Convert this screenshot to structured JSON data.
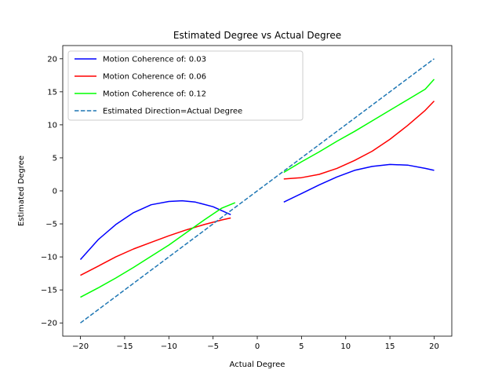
{
  "chart_data": {
    "type": "line",
    "title": "Estimated Degree vs Actual Degree",
    "xlabel": "Actual Degree",
    "ylabel": "Estimated Degree",
    "xlim": [
      -22,
      22
    ],
    "ylim": [
      -22,
      22
    ],
    "xticks": [
      -20,
      -15,
      -10,
      -5,
      0,
      5,
      10,
      15,
      20
    ],
    "yticks": [
      -20,
      -15,
      -10,
      -5,
      0,
      5,
      10,
      15,
      20
    ],
    "grid": false,
    "legend_position": "top-left",
    "series": [
      {
        "name": "Motion Coherence of: 0.03",
        "color": "#0000ff",
        "dashed": false,
        "segments": [
          {
            "x": [
              -20,
              -18,
              -16,
              -14,
              -12,
              -10,
              -8.5,
              -7,
              -5,
              -3
            ],
            "y": [
              -10.4,
              -7.4,
              -5.1,
              -3.3,
              -2.1,
              -1.6,
              -1.5,
              -1.7,
              -2.4,
              -3.6
            ]
          },
          {
            "x": [
              3,
              5,
              7,
              9,
              11,
              13,
              15,
              17,
              19,
              20
            ],
            "y": [
              -1.7,
              -0.4,
              0.9,
              2.1,
              3.1,
              3.7,
              4.0,
              3.9,
              3.4,
              3.1
            ]
          }
        ]
      },
      {
        "name": "Motion Coherence of: 0.06",
        "color": "#ff0000",
        "dashed": false,
        "segments": [
          {
            "x": [
              -20,
              -18,
              -16,
              -14,
              -12,
              -10,
              -8,
              -6,
              -4,
              -3
            ],
            "y": [
              -12.8,
              -11.4,
              -10.0,
              -8.8,
              -7.8,
              -6.8,
              -5.9,
              -5.1,
              -4.4,
              -4.1
            ]
          },
          {
            "x": [
              3,
              5,
              7,
              9,
              11,
              13,
              15,
              17,
              19,
              20
            ],
            "y": [
              1.8,
              2.0,
              2.5,
              3.4,
              4.6,
              6.0,
              7.8,
              9.9,
              12.2,
              13.6
            ]
          }
        ]
      },
      {
        "name": "Motion Coherence of: 0.12",
        "color": "#00ff00",
        "dashed": false,
        "segments": [
          {
            "x": [
              -20,
              -18,
              -16,
              -14,
              -12,
              -10,
              -8,
              -6,
              -4,
              -2.5
            ],
            "y": [
              -16.1,
              -14.7,
              -13.2,
              -11.6,
              -9.9,
              -8.2,
              -6.3,
              -4.4,
              -2.6,
              -1.8
            ]
          },
          {
            "x": [
              3,
              5,
              7,
              9,
              11,
              13,
              15,
              17,
              19,
              20
            ],
            "y": [
              2.8,
              4.4,
              5.9,
              7.5,
              9.0,
              10.6,
              12.2,
              13.8,
              15.4,
              16.9
            ]
          }
        ]
      },
      {
        "name": "Estimated Direction=Actual Degree",
        "color": "#1f77b4",
        "dashed": true,
        "segments": [
          {
            "x": [
              -20,
              20
            ],
            "y": [
              -20,
              20
            ]
          }
        ]
      }
    ]
  }
}
